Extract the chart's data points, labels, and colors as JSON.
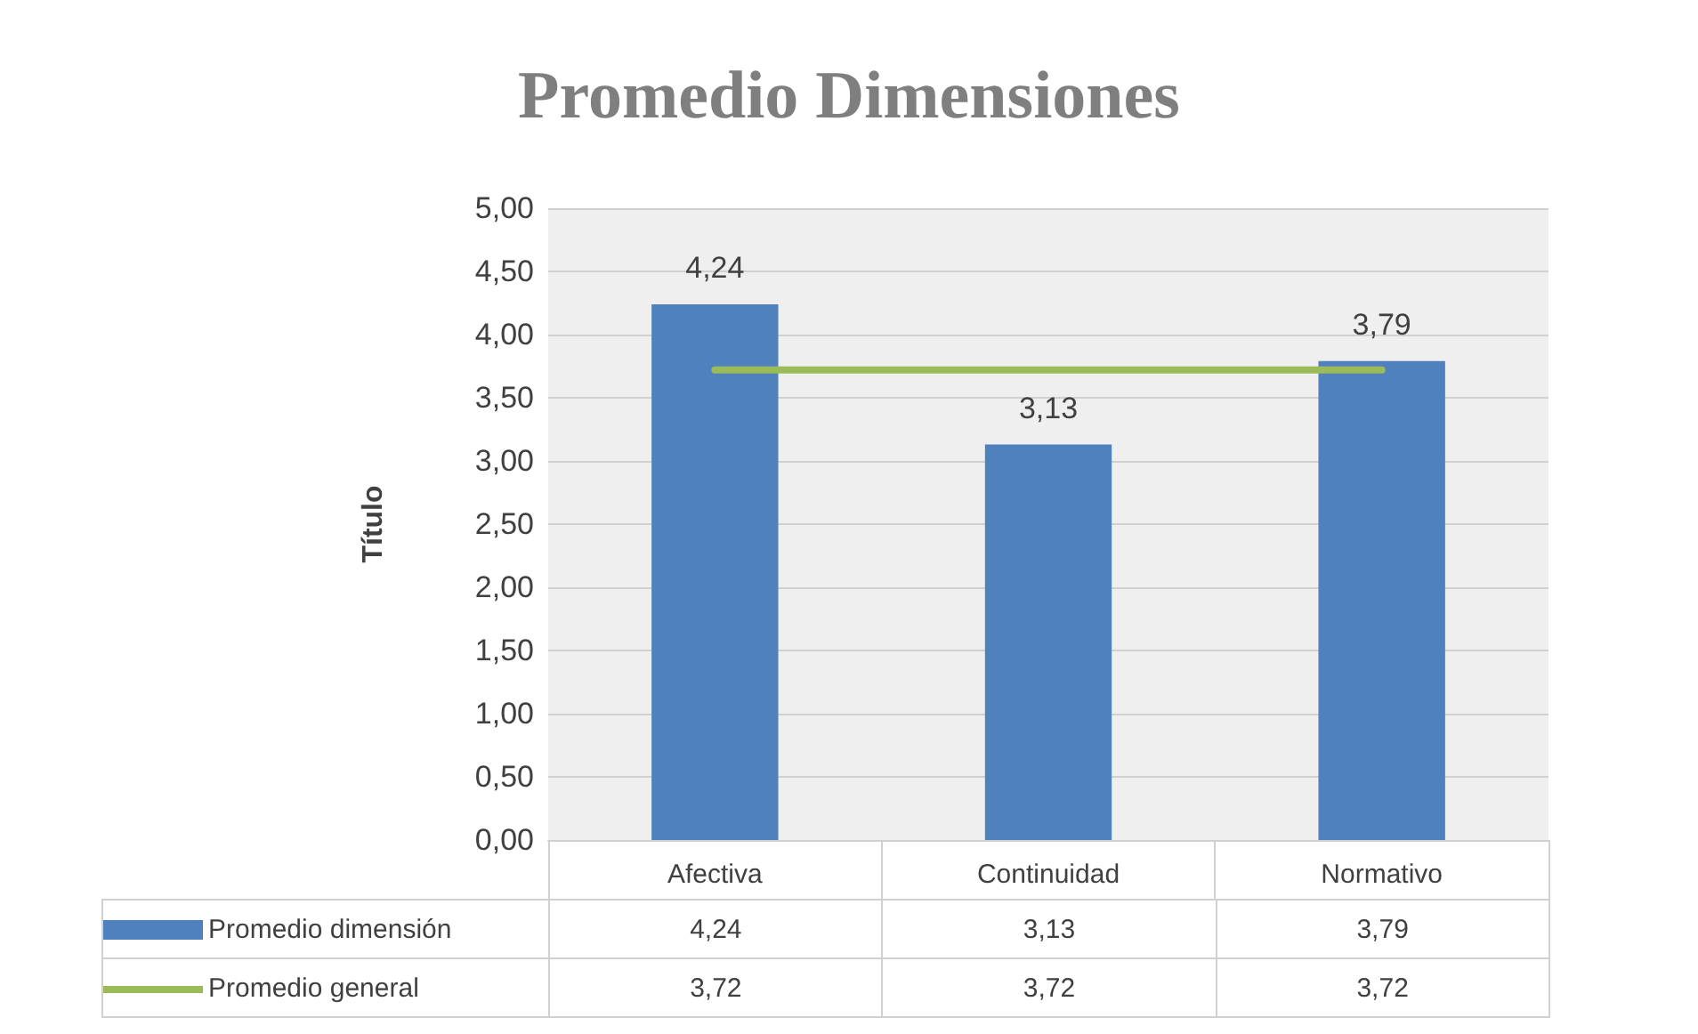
{
  "chart_data": {
    "type": "bar",
    "title": "Promedio Dimensiones",
    "ylabel": "Título",
    "categories": [
      "Afectiva",
      "Continuidad",
      "Normativo"
    ],
    "series": [
      {
        "name": "Promedio dimensión",
        "color": "#4f81bd",
        "values": [
          4.24,
          3.13,
          3.79
        ],
        "value_labels": [
          "4,24",
          "3,13",
          "3,79"
        ]
      },
      {
        "name": "Promedio general",
        "type": "line",
        "color": "#9bbb59",
        "values": [
          3.72,
          3.72,
          3.72
        ],
        "value_labels": [
          "3,72",
          "3,72",
          "3,72"
        ]
      }
    ],
    "ylim": [
      0,
      5
    ],
    "yticks": [
      {
        "value": 0,
        "label": "0,00"
      },
      {
        "value": 0.5,
        "label": "0,50"
      },
      {
        "value": 1,
        "label": "1,00"
      },
      {
        "value": 1.5,
        "label": "1,50"
      },
      {
        "value": 2,
        "label": "2,00"
      },
      {
        "value": 2.5,
        "label": "2,50"
      },
      {
        "value": 3,
        "label": "3,00"
      },
      {
        "value": 3.5,
        "label": "3,50"
      },
      {
        "value": 4,
        "label": "4,00"
      },
      {
        "value": 4.5,
        "label": "4,50"
      },
      {
        "value": 5,
        "label": "5,00"
      }
    ],
    "grid": "y",
    "legend": "bottom",
    "marker": "none",
    "line_style": "solid"
  }
}
